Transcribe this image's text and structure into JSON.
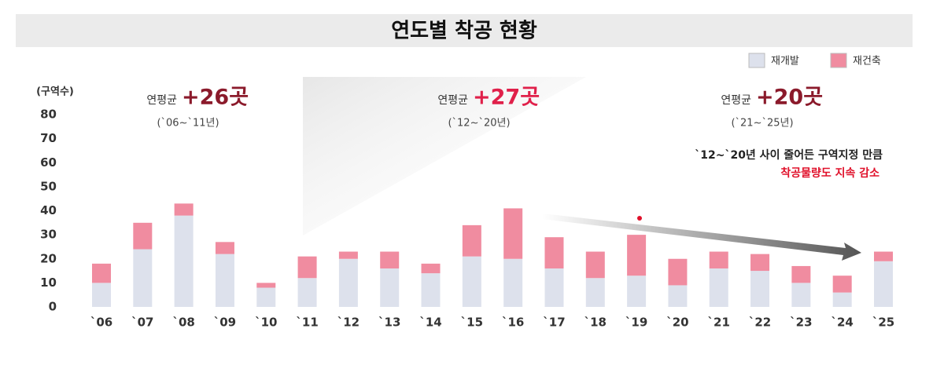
{
  "chart_data": {
    "type": "stacked_bar",
    "title": "연도별 착공 현황",
    "y_label": "(구역수)",
    "categories": [
      "`06",
      "`07",
      "`08",
      "`09",
      "`10",
      "`11",
      "`12",
      "`13",
      "`14",
      "`15",
      "`16",
      "`17",
      "`18",
      "`19",
      "`20",
      "`21",
      "`22",
      "`23",
      "`24",
      "`25"
    ],
    "series": [
      {
        "name": "재개발",
        "color": "#dde1ec",
        "values": [
          10,
          24,
          38,
          22,
          8,
          12,
          20,
          16,
          14,
          21,
          20,
          16,
          12,
          13,
          9,
          16,
          15,
          10,
          6,
          19
        ]
      },
      {
        "name": "재건축",
        "color": "#f08ca0",
        "values": [
          8,
          11,
          5,
          5,
          2,
          9,
          3,
          7,
          4,
          13,
          21,
          13,
          11,
          17,
          11,
          7,
          7,
          7,
          7,
          4
        ]
      }
    ],
    "ylim": [
      0,
      80
    ],
    "yticks": [
      0,
      10,
      20,
      30,
      40,
      50,
      60,
      70,
      80
    ],
    "annotations": [
      {
        "label": "연평균",
        "highlight": "+26곳",
        "period": "(`06~`11년)",
        "color": "#8b1a2b"
      },
      {
        "label": "연평균",
        "highlight": "+27곳",
        "period": "(`12~`20년)",
        "color": "#e0204a"
      },
      {
        "label": "연평균",
        "highlight": "+20곳",
        "period": "(`21~`25년)",
        "color": "#8b1a2b"
      }
    ],
    "note": [
      "`12~`20년 사이 줄어든 구역지정 만큼",
      "착공물량도 지속 감소"
    ]
  }
}
